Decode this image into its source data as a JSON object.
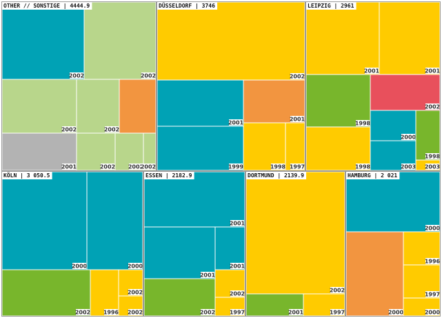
{
  "colors": {
    "teal": "#00a2b5",
    "lightgreen": "#b8d68b",
    "orange": "#f29540",
    "gray": "#b3b3b3",
    "yellow": "#ffcb00",
    "green": "#78b62c",
    "red": "#e8505c"
  },
  "chart_data": {
    "type": "treemap",
    "groups": [
      {
        "title": "OTHER // SONSTIGE | 4444.9",
        "cells": [
          {
            "label": "2002",
            "color": "teal"
          },
          {
            "label": "2002",
            "color": "lightgreen"
          },
          {
            "label": "2002",
            "color": "lightgreen"
          },
          {
            "label": "2002",
            "color": "lightgreen"
          },
          {
            "label": "",
            "color": "orange"
          },
          {
            "label": "2001",
            "color": "gray"
          },
          {
            "label": "2002",
            "color": "lightgreen"
          },
          {
            "label": "2002",
            "color": "lightgreen"
          },
          {
            "label": "2002",
            "color": "lightgreen"
          }
        ]
      },
      {
        "title": "DÜSSELDORF | 3746",
        "cells": [
          {
            "label": "2002",
            "color": "yellow"
          },
          {
            "label": "2001",
            "color": "teal"
          },
          {
            "label": "2001",
            "color": "orange"
          },
          {
            "label": "1999",
            "color": "teal"
          },
          {
            "label": "1998",
            "color": "yellow"
          },
          {
            "label": "1997",
            "color": "yellow"
          }
        ]
      },
      {
        "title": "LEIPZIG | 2961",
        "cells": [
          {
            "label": "2001",
            "color": "yellow"
          },
          {
            "label": "2001",
            "color": "yellow"
          },
          {
            "label": "1998",
            "color": "green"
          },
          {
            "label": "2002",
            "color": "red"
          },
          {
            "label": "2000",
            "color": "teal"
          },
          {
            "label": "1998",
            "color": "green"
          },
          {
            "label": "1998",
            "color": "yellow"
          },
          {
            "label": "2003",
            "color": "teal"
          },
          {
            "label": "2003",
            "color": "yellow"
          }
        ]
      },
      {
        "title": "KÖLN | 3 050.5",
        "cells": [
          {
            "label": "2000",
            "color": "teal"
          },
          {
            "label": "2000",
            "color": "teal"
          },
          {
            "label": "2002",
            "color": "green"
          },
          {
            "label": "1996",
            "color": "yellow"
          },
          {
            "label": "2002",
            "color": "yellow"
          },
          {
            "label": "2002",
            "color": "yellow"
          }
        ]
      },
      {
        "title": "ESSEN | 2182.9",
        "cells": [
          {
            "label": "2001",
            "color": "teal"
          },
          {
            "label": "2001",
            "color": "teal"
          },
          {
            "label": "2001",
            "color": "teal"
          },
          {
            "label": "2002",
            "color": "green"
          },
          {
            "label": "2002",
            "color": "yellow"
          },
          {
            "label": "1997",
            "color": "yellow"
          }
        ]
      },
      {
        "title": "DORTMUND | 2139.9",
        "cells": [
          {
            "label": "2002",
            "color": "yellow"
          },
          {
            "label": "2001",
            "color": "green"
          },
          {
            "label": "1997",
            "color": "yellow"
          }
        ]
      },
      {
        "title": "HAMBURG | 2 021",
        "cells": [
          {
            "label": "2000",
            "color": "teal"
          },
          {
            "label": "2000",
            "color": "orange"
          },
          {
            "label": "1996",
            "color": "yellow"
          },
          {
            "label": "1997",
            "color": "yellow"
          },
          {
            "label": "2000",
            "color": "yellow"
          }
        ]
      }
    ]
  }
}
